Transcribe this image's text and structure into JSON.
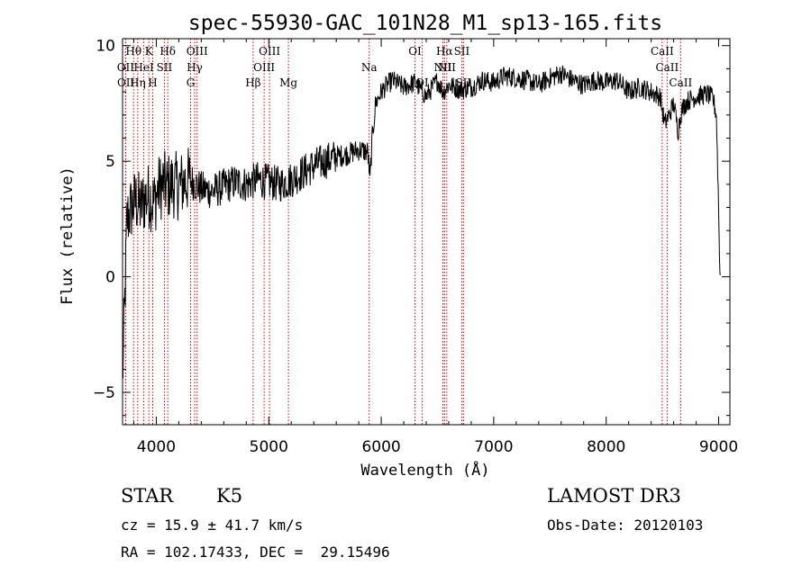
{
  "chart_data": {
    "type": "line",
    "title": "spec-55930-GAC_101N28_M1_sp13-165.fits",
    "xlabel": "Wavelength (Å)",
    "ylabel": "Flux (relative)",
    "xlim": [
      3700,
      9100
    ],
    "ylim": [
      -6.4,
      10.3
    ],
    "xticks": [
      4000,
      5000,
      6000,
      7000,
      8000,
      9000
    ],
    "yticks": [
      -5,
      0,
      5,
      10
    ],
    "series": [
      {
        "name": "spectrum",
        "x": [
          3700,
          3740,
          3780,
          3820,
          3860,
          3900,
          3940,
          3980,
          4020,
          4060,
          4100,
          4150,
          4200,
          4250,
          4300,
          4350,
          4400,
          4500,
          4600,
          4700,
          4800,
          4900,
          5000,
          5100,
          5200,
          5300,
          5400,
          5500,
          5600,
          5700,
          5800,
          5880,
          5900,
          5920,
          5950,
          6000,
          6050,
          6100,
          6200,
          6300,
          6400,
          6500,
          6550,
          6600,
          6700,
          6800,
          6900,
          7000,
          7100,
          7200,
          7300,
          7400,
          7500,
          7600,
          7700,
          7800,
          7900,
          8000,
          8100,
          8200,
          8300,
          8400,
          8480,
          8520,
          8540,
          8560,
          8600,
          8640,
          8660,
          8680,
          8720,
          8800,
          8900,
          8950,
          8980,
          9000,
          9010,
          9020
        ],
        "y": [
          -4.5,
          2.5,
          3.0,
          3.3,
          3.0,
          3.4,
          3.5,
          3.2,
          3.8,
          4.0,
          3.9,
          4.0,
          3.9,
          4.1,
          4.2,
          4.0,
          3.8,
          3.7,
          3.9,
          4.1,
          4.0,
          4.2,
          4.1,
          4.0,
          4.2,
          4.5,
          4.8,
          5.0,
          5.2,
          5.3,
          5.5,
          5.4,
          4.2,
          6.0,
          7.5,
          8.0,
          8.3,
          8.5,
          8.2,
          8.4,
          7.8,
          8.5,
          8.0,
          8.3,
          8.1,
          8.2,
          8.5,
          8.4,
          8.7,
          8.6,
          8.5,
          8.3,
          8.6,
          8.8,
          8.5,
          8.3,
          8.5,
          8.4,
          8.5,
          8.0,
          8.2,
          8.0,
          7.8,
          6.6,
          6.8,
          7.0,
          7.5,
          6.3,
          7.0,
          7.3,
          7.6,
          7.8,
          7.9,
          7.7,
          7.0,
          3.0,
          0.1,
          0.1
        ]
      }
    ],
    "lines": [
      {
        "name": "Hθ",
        "x": 3798,
        "row": 1
      },
      {
        "name": "OII",
        "x": 3727,
        "row": 2
      },
      {
        "name": "OII",
        "x": 3729,
        "row": 3
      },
      {
        "name": "Hη",
        "x": 3835,
        "row": 3
      },
      {
        "name": "HeI",
        "x": 3889,
        "row": 2
      },
      {
        "name": "K",
        "x": 3934,
        "row": 1
      },
      {
        "name": "H",
        "x": 3968,
        "row": 3
      },
      {
        "name": "SII",
        "x": 4072,
        "row": 2
      },
      {
        "name": "Hδ",
        "x": 4102,
        "row": 1
      },
      {
        "name": "G",
        "x": 4305,
        "row": 3
      },
      {
        "name": "Hγ",
        "x": 4341,
        "row": 2
      },
      {
        "name": "OIII",
        "x": 4363,
        "row": 1
      },
      {
        "name": "Hβ",
        "x": 4861,
        "row": 3
      },
      {
        "name": "OIII",
        "x": 4959,
        "row": 2
      },
      {
        "name": "OIII",
        "x": 5007,
        "row": 1
      },
      {
        "name": "Mg",
        "x": 5175,
        "row": 3
      },
      {
        "name": "Na",
        "x": 5893,
        "row": 2
      },
      {
        "name": "OI",
        "x": 6300,
        "row": 1
      },
      {
        "name": "OI",
        "x": 6363,
        "row": 3
      },
      {
        "name": "NII",
        "x": 6548,
        "row": 2
      },
      {
        "name": "Hα",
        "x": 6563,
        "row": 1
      },
      {
        "name": "NII",
        "x": 6583,
        "row": 2
      },
      {
        "name": "SII",
        "x": 6716,
        "row": 1
      },
      {
        "name": "SII",
        "x": 6731,
        "row": 3
      },
      {
        "name": "CaII",
        "x": 8498,
        "row": 1
      },
      {
        "name": "CaII",
        "x": 8542,
        "row": 2
      },
      {
        "name": "CaII",
        "x": 8662,
        "row": 3
      }
    ]
  },
  "info": {
    "object_class": "STAR",
    "subclass": "K5",
    "survey": "LAMOST DR3",
    "cz": "cz = 15.9 ± 41.7 km/s",
    "obs_date": "Obs-Date: 20120103",
    "coords": "RA = 102.17433, DEC =  29.15496"
  },
  "colors": {
    "line_marker": "#cc0000",
    "spectrum": "#000000"
  }
}
